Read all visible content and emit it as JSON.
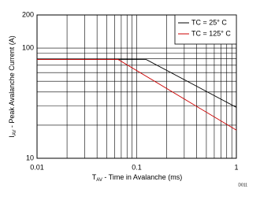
{
  "chart_data": {
    "type": "line",
    "xlabel": {
      "symbol": "T",
      "subscript": "AV",
      "text": " - Time in Avalanche (ms)"
    },
    "ylabel": {
      "symbol": "I",
      "subscript": "AV",
      "text": " - Peak Avalanche Current (A)"
    },
    "figure_id": "D011",
    "log_x": true,
    "log_y": true,
    "grid": true,
    "xlim": [
      0.01,
      1
    ],
    "xticks": [
      0.01,
      0.1,
      1
    ],
    "ylim": [
      10,
      200
    ],
    "yticks": [
      10,
      100,
      200
    ],
    "legend": "upper right",
    "series": [
      {
        "name": "TC = 25° C",
        "color": "#000000",
        "x": [
          0.01,
          0.124,
          1
        ],
        "values": [
          79,
          79,
          29
        ]
      },
      {
        "name": "TC = 125° C",
        "color": "#cc0000",
        "x": [
          0.01,
          0.065,
          1
        ],
        "values": [
          79,
          79,
          18
        ]
      }
    ]
  }
}
